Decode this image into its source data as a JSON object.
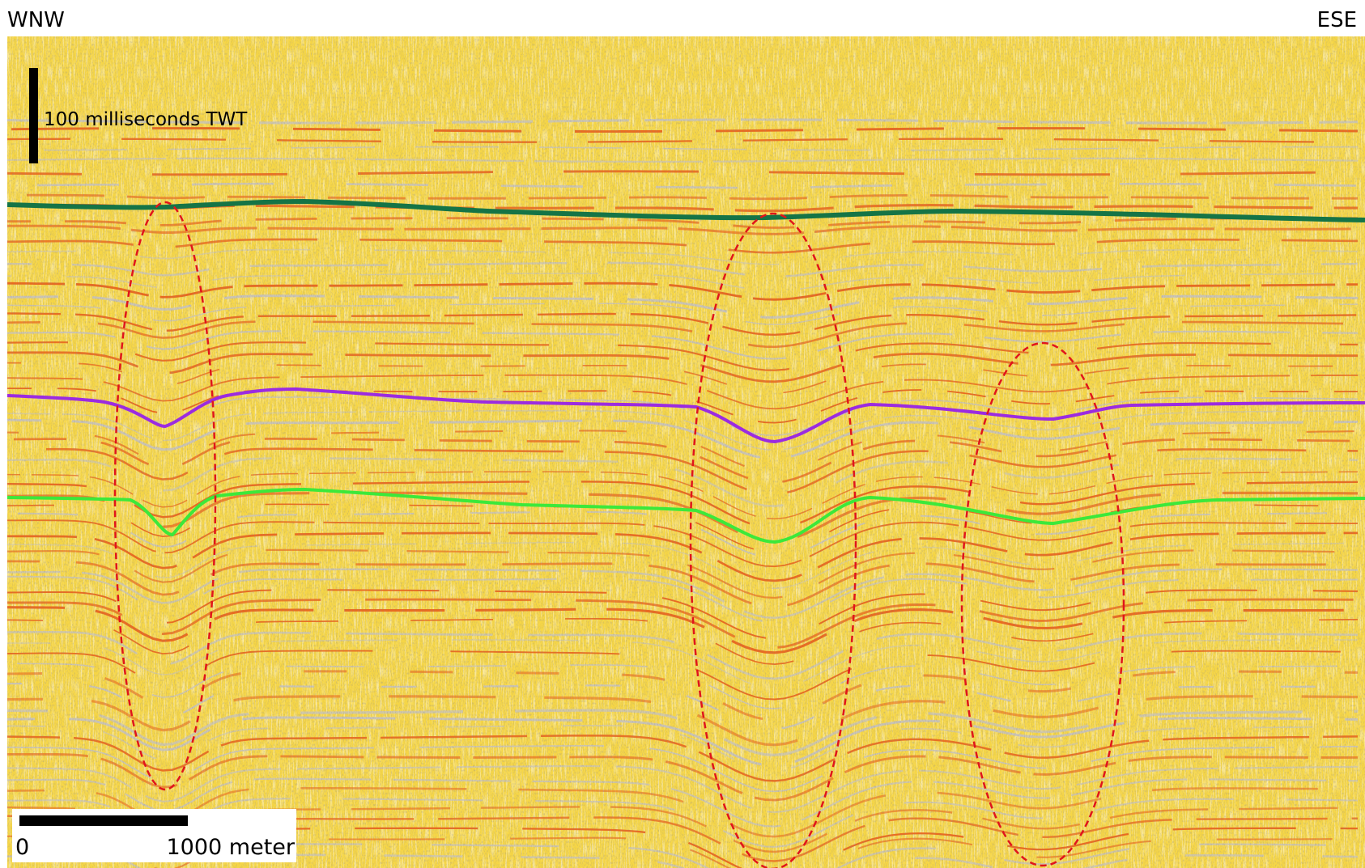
{
  "header": {
    "left": "WNW",
    "right": "ESE"
  },
  "scale": {
    "vertical": "100 milliseconds TWT",
    "horizontal_start": "0",
    "horizontal_end": "1000 meter"
  }
}
